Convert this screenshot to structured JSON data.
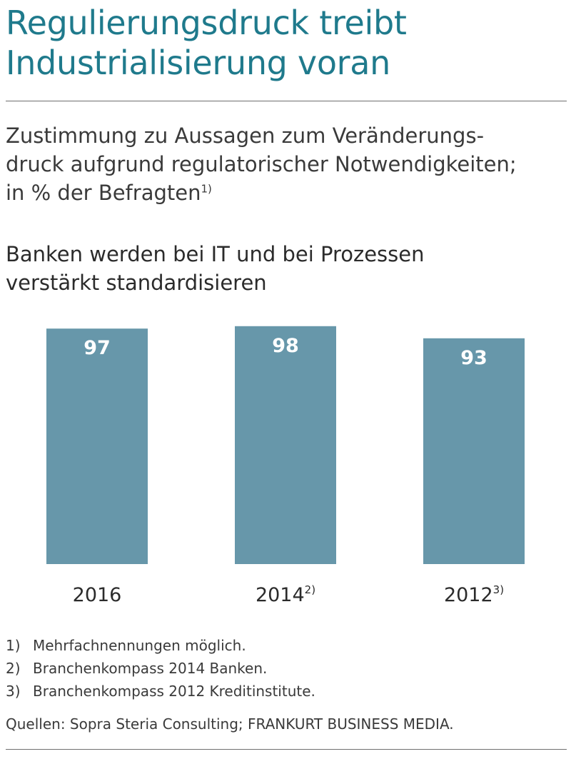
{
  "header": {
    "title_line1": "Regulierungsdruck treibt",
    "title_line2": "Industrialisierung voran",
    "subtitle_line1": "Zustimmung zu Aussagen zum Veränderungs-",
    "subtitle_line2": "druck aufgrund regulatorischer Notwendigkeiten;",
    "subtitle_line3": "in % der Befragten",
    "subtitle_note": "1)"
  },
  "chart_data": {
    "type": "bar",
    "title": "Banken werden bei IT und bei Prozessen verstärkt standardisieren",
    "title_line1": "Banken werden bei IT und bei Prozessen",
    "title_line2": "verstärkt standardisieren",
    "categories": [
      "2016",
      "2014",
      "2012"
    ],
    "category_notes": [
      "",
      "2)",
      "3)"
    ],
    "values": [
      97,
      98,
      93
    ],
    "unit": "%",
    "ylim": [
      0,
      100
    ],
    "grid": false,
    "legend": "none",
    "data_labels": true,
    "colors": {
      "bar": "#6797aa",
      "bar_label": "#ffffff",
      "axis_label": "#2b2b2b"
    }
  },
  "footnotes": [
    {
      "mark": "1)",
      "text": "Mehrfachnennungen möglich."
    },
    {
      "mark": "2)",
      "text": "Branchenkompass 2014 Banken."
    },
    {
      "mark": "3)",
      "text": "Branchenkompass 2012 Kreditinstitute."
    }
  ],
  "source": "Quellen: Sopra Steria Consulting; FRANKURT BUSINESS MEDIA.",
  "colors": {
    "title": "#1f7a8c",
    "rule": "#6f6f6f",
    "text": "#2b2b2b"
  }
}
